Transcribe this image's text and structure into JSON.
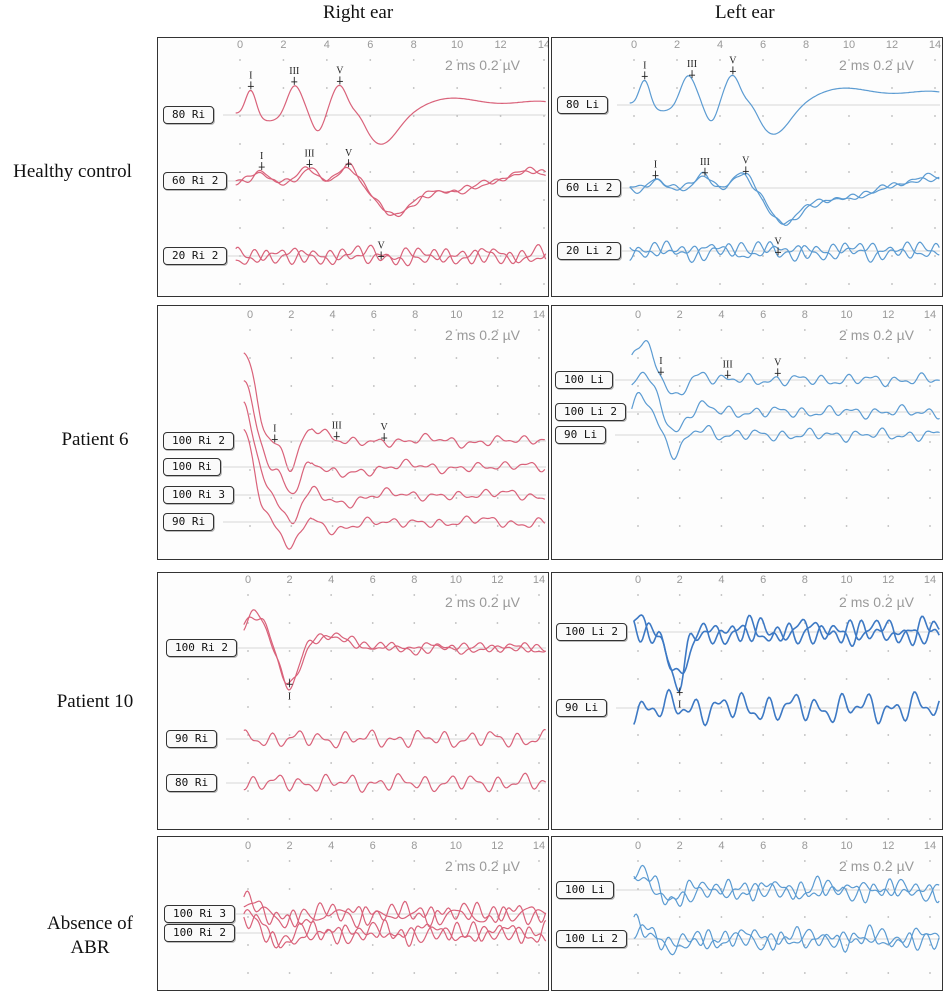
{
  "columns": [
    "Right ear",
    "Left ear"
  ],
  "rows": [
    {
      "label": "Healthy control"
    },
    {
      "label": "Patient 6"
    },
    {
      "label": "Patient 10"
    },
    {
      "label": "Absence of ABR"
    }
  ],
  "axis_ticks": [
    "0",
    "2",
    "4",
    "6",
    "8",
    "10",
    "12",
    "14"
  ],
  "scale_text": "2 ms    0.2 µV",
  "colors": {
    "right": "#d9627a",
    "left": "#5b9bd2",
    "left_dark": "#3d79c4",
    "frame": "#333333"
  },
  "panels": [
    {
      "id": "hc-r",
      "ear": "right",
      "traces": [
        {
          "tag": "80 Ri",
          "waves": [
            {
              "name": "I",
              "x": 0.5
            },
            {
              "name": "III",
              "x": 2.5
            },
            {
              "name": "V",
              "x": 4.6
            }
          ]
        },
        {
          "tag": "60 Ri 2",
          "waves": [
            {
              "name": "I",
              "x": 1.0
            },
            {
              "name": "III",
              "x": 3.2
            },
            {
              "name": "V",
              "x": 5.0
            }
          ]
        },
        {
          "tag": "20 Ri 2",
          "waves": [
            {
              "name": "V",
              "x": 6.5
            }
          ]
        }
      ]
    },
    {
      "id": "hc-l",
      "ear": "left",
      "traces": [
        {
          "tag": "80 Li",
          "waves": [
            {
              "name": "I",
              "x": 0.5
            },
            {
              "name": "III",
              "x": 2.7
            },
            {
              "name": "V",
              "x": 4.6
            }
          ]
        },
        {
          "tag": "60 Li 2",
          "waves": [
            {
              "name": "I",
              "x": 1.0
            },
            {
              "name": "III",
              "x": 3.3
            },
            {
              "name": "V",
              "x": 5.2
            }
          ]
        },
        {
          "tag": "20 Li 2",
          "waves": [
            {
              "name": "V",
              "x": 6.7
            }
          ]
        }
      ]
    },
    {
      "id": "p6-r",
      "ear": "right",
      "traces": [
        {
          "tag": "100 Ri 2",
          "waves": [
            {
              "name": "I",
              "x": 1.2
            },
            {
              "name": "III",
              "x": 4.2
            },
            {
              "name": "V",
              "x": 6.5
            }
          ]
        },
        {
          "tag": "100 Ri",
          "waves": []
        },
        {
          "tag": "100 Ri 3",
          "waves": []
        },
        {
          "tag": "90 Ri",
          "waves": []
        }
      ]
    },
    {
      "id": "p6-l",
      "ear": "left",
      "traces": [
        {
          "tag": "100 Li",
          "waves": [
            {
              "name": "I",
              "x": 1.1
            },
            {
              "name": "III",
              "x": 4.3
            },
            {
              "name": "V",
              "x": 6.7
            }
          ]
        },
        {
          "tag": "100 Li 2",
          "waves": []
        },
        {
          "tag": "90 Li",
          "waves": []
        }
      ]
    },
    {
      "id": "p10-r",
      "ear": "right",
      "traces": [
        {
          "tag": "100 Ri 2",
          "waves": [
            {
              "name": "I",
              "x": 2.0
            }
          ]
        },
        {
          "tag": "90 Ri",
          "waves": []
        },
        {
          "tag": "80 Ri",
          "waves": []
        }
      ]
    },
    {
      "id": "p10-l",
      "ear": "left",
      "traces": [
        {
          "tag": "100 Li 2",
          "waves": [
            {
              "name": "I",
              "x": 2.0
            }
          ]
        },
        {
          "tag": "90 Li",
          "waves": []
        }
      ]
    },
    {
      "id": "abs-r",
      "ear": "right",
      "traces": [
        {
          "tag": "100 Ri 3",
          "waves": []
        },
        {
          "tag": "100 Ri 2",
          "waves": []
        }
      ]
    },
    {
      "id": "abs-l",
      "ear": "left",
      "traces": [
        {
          "tag": "100 Li",
          "waves": []
        },
        {
          "tag": "100 Li 2",
          "waves": []
        }
      ]
    }
  ]
}
